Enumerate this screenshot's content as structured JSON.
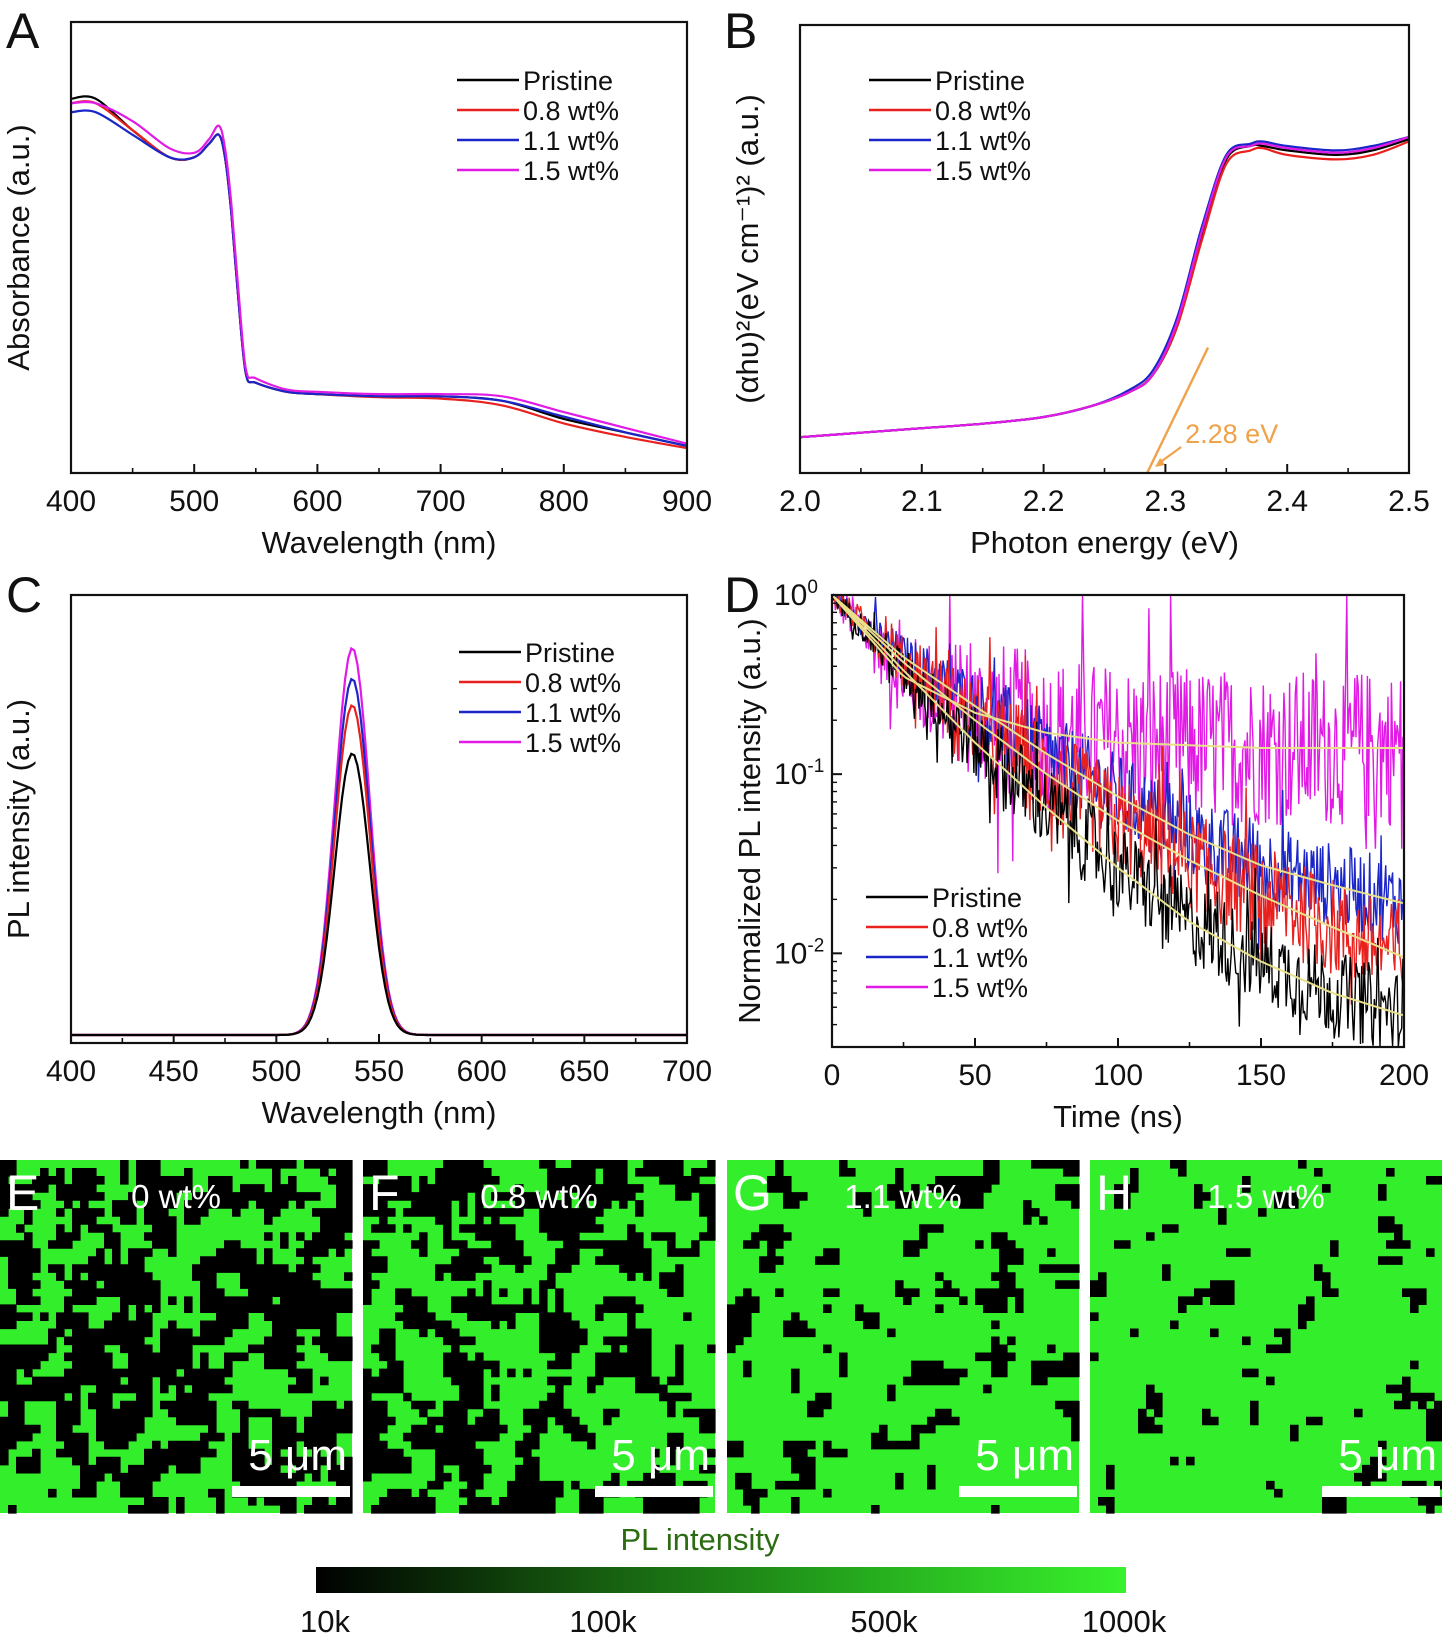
{
  "series_names": [
    "Pristine",
    "0.8 wt%",
    "1.1 wt%",
    "1.5 wt%"
  ],
  "colors": {
    "Pristine": "#000000",
    "0.8 wt%": "#e8211f",
    "1.1 wt%": "#1b26c8",
    "1.5 wt%": "#e21ae6",
    "fit": "#e8e08a",
    "annotation": "#f0a24a",
    "map_bright": "#33ee2a",
    "map_dark": "#000000"
  },
  "panels": {
    "A": {
      "letter": "A"
    },
    "B": {
      "letter": "B",
      "annotation": "2.28 eV"
    },
    "C": {
      "letter": "C"
    },
    "D": {
      "letter": "D"
    }
  },
  "micrographs": [
    {
      "letter": "E",
      "label": "0 wt%",
      "scale_text": "5 μm",
      "bright_fraction": 0.45
    },
    {
      "letter": "F",
      "label": "0.8 wt%",
      "scale_text": "5 μm",
      "bright_fraction": 0.55
    },
    {
      "letter": "G",
      "label": "1.1 wt%",
      "scale_text": "5 μm",
      "bright_fraction": 0.82
    },
    {
      "letter": "H",
      "label": "1.5 wt%",
      "scale_text": "5 μm",
      "bright_fraction": 0.9
    }
  ],
  "colorbar": {
    "title": "PL intensity",
    "ticks": [
      "10k",
      "100k",
      "500k",
      "1000k"
    ]
  },
  "chart_data": [
    {
      "id": "A",
      "type": "line",
      "xlabel": "Wavelength (nm)",
      "ylabel": "Absorbance (a.u.)",
      "xlim": [
        400,
        900
      ],
      "ylim": [
        0,
        1
      ],
      "xticks": [
        "400",
        "500",
        "600",
        "700",
        "800",
        "900"
      ],
      "legend": "top-right",
      "series": [
        {
          "name": "Pristine",
          "x": [
            400,
            420,
            450,
            480,
            500,
            512,
            520,
            525,
            530,
            536,
            542,
            550,
            575,
            600,
            650,
            700,
            750,
            800,
            850,
            900
          ],
          "y": [
            0.83,
            0.83,
            0.76,
            0.7,
            0.7,
            0.73,
            0.75,
            0.7,
            0.58,
            0.38,
            0.22,
            0.2,
            0.18,
            0.175,
            0.17,
            0.17,
            0.16,
            0.12,
            0.09,
            0.06
          ]
        },
        {
          "name": "0.8 wt%",
          "x": [
            400,
            420,
            450,
            480,
            500,
            512,
            520,
            525,
            530,
            536,
            542,
            550,
            575,
            600,
            650,
            700,
            750,
            800,
            850,
            900
          ],
          "y": [
            0.82,
            0.82,
            0.76,
            0.7,
            0.7,
            0.73,
            0.75,
            0.7,
            0.58,
            0.38,
            0.22,
            0.2,
            0.18,
            0.175,
            0.168,
            0.165,
            0.15,
            0.11,
            0.08,
            0.055
          ]
        },
        {
          "name": "1.1 wt%",
          "x": [
            400,
            420,
            450,
            480,
            500,
            512,
            520,
            525,
            530,
            536,
            542,
            550,
            575,
            600,
            650,
            700,
            750,
            800,
            850,
            900
          ],
          "y": [
            0.8,
            0.8,
            0.75,
            0.7,
            0.7,
            0.73,
            0.75,
            0.7,
            0.58,
            0.38,
            0.22,
            0.2,
            0.18,
            0.175,
            0.17,
            0.17,
            0.16,
            0.125,
            0.09,
            0.06
          ]
        },
        {
          "name": "1.5 wt%",
          "x": [
            400,
            420,
            450,
            480,
            500,
            512,
            520,
            525,
            530,
            536,
            542,
            550,
            575,
            600,
            650,
            700,
            750,
            800,
            850,
            900
          ],
          "y": [
            0.82,
            0.82,
            0.78,
            0.72,
            0.71,
            0.74,
            0.77,
            0.72,
            0.6,
            0.4,
            0.23,
            0.21,
            0.185,
            0.18,
            0.175,
            0.175,
            0.17,
            0.135,
            0.1,
            0.065
          ]
        }
      ]
    },
    {
      "id": "B",
      "type": "line",
      "xlabel": "Photon energy (eV)",
      "ylabel": "(αhυ)²(eV cm⁻¹)² (a.u.)",
      "xlim": [
        2.0,
        2.5
      ],
      "ylim": [
        0,
        1
      ],
      "xticks": [
        "2.0",
        "2.1",
        "2.2",
        "2.3",
        "2.4",
        "2.5"
      ],
      "legend": "top-left",
      "series": [
        {
          "name": "Pristine",
          "x": [
            2.0,
            2.05,
            2.1,
            2.15,
            2.2,
            2.24,
            2.27,
            2.29,
            2.31,
            2.33,
            2.35,
            2.37,
            2.38,
            2.4,
            2.44,
            2.47,
            2.5
          ],
          "y": [
            0.08,
            0.09,
            0.1,
            0.11,
            0.125,
            0.15,
            0.18,
            0.22,
            0.33,
            0.53,
            0.7,
            0.73,
            0.73,
            0.72,
            0.71,
            0.72,
            0.745
          ]
        },
        {
          "name": "0.8 wt%",
          "x": [
            2.0,
            2.05,
            2.1,
            2.15,
            2.2,
            2.24,
            2.27,
            2.29,
            2.31,
            2.33,
            2.35,
            2.37,
            2.38,
            2.4,
            2.44,
            2.47,
            2.5
          ],
          "y": [
            0.08,
            0.09,
            0.1,
            0.11,
            0.125,
            0.15,
            0.18,
            0.22,
            0.33,
            0.52,
            0.69,
            0.72,
            0.725,
            0.71,
            0.7,
            0.71,
            0.74
          ]
        },
        {
          "name": "1.1 wt%",
          "x": [
            2.0,
            2.05,
            2.1,
            2.15,
            2.2,
            2.24,
            2.27,
            2.29,
            2.31,
            2.33,
            2.35,
            2.37,
            2.38,
            2.4,
            2.44,
            2.47,
            2.5
          ],
          "y": [
            0.08,
            0.09,
            0.1,
            0.11,
            0.125,
            0.15,
            0.185,
            0.23,
            0.35,
            0.55,
            0.71,
            0.735,
            0.74,
            0.73,
            0.72,
            0.73,
            0.75
          ]
        },
        {
          "name": "1.5 wt%",
          "x": [
            2.0,
            2.05,
            2.1,
            2.15,
            2.2,
            2.24,
            2.27,
            2.29,
            2.31,
            2.33,
            2.35,
            2.37,
            2.38,
            2.4,
            2.44,
            2.47,
            2.5
          ],
          "y": [
            0.08,
            0.09,
            0.1,
            0.11,
            0.125,
            0.15,
            0.18,
            0.22,
            0.34,
            0.54,
            0.705,
            0.73,
            0.735,
            0.725,
            0.715,
            0.725,
            0.75
          ]
        }
      ],
      "tangent": {
        "x": [
          2.285,
          2.335
        ],
        "y": [
          0.0,
          0.28
        ]
      }
    },
    {
      "id": "C",
      "type": "line",
      "xlabel": "Wavelength (nm)",
      "ylabel": "PL intensity (a.u.)",
      "xlim": [
        400,
        700
      ],
      "ylim": [
        0,
        1
      ],
      "xticks": [
        "400",
        "450",
        "500",
        "550",
        "600",
        "650",
        "700"
      ],
      "legend": "top-right",
      "peak_center_nm": 537,
      "peak_fwhm_nm": 20,
      "series": [
        {
          "name": "Pristine",
          "peak": 0.64
        },
        {
          "name": "0.8 wt%",
          "peak": 0.75
        },
        {
          "name": "1.1 wt%",
          "peak": 0.81
        },
        {
          "name": "1.5 wt%",
          "peak": 0.88
        }
      ]
    },
    {
      "id": "D",
      "type": "line",
      "scale_y": "log",
      "xlabel": "Time (ns)",
      "ylabel": "Normalized PL intensity (a.u.)",
      "xlim": [
        0,
        200
      ],
      "ylim": [
        0.003,
        1
      ],
      "xticks": [
        "0",
        "50",
        "100",
        "150",
        "200"
      ],
      "yticks": [
        {
          "value": 1,
          "base": "10",
          "exp": "0"
        },
        {
          "value": 0.1,
          "base": "10",
          "exp": "-1"
        },
        {
          "value": 0.01,
          "base": "10",
          "exp": "-2"
        }
      ],
      "legend": "bottom-left",
      "series": [
        {
          "name": "Pristine",
          "t": [
            0,
            25,
            50,
            75,
            100,
            125,
            150,
            175,
            200
          ],
          "y": [
            1,
            0.38,
            0.15,
            0.065,
            0.03,
            0.015,
            0.009,
            0.006,
            0.0045
          ],
          "noise": 0.12
        },
        {
          "name": "0.8 wt%",
          "t": [
            0,
            25,
            50,
            75,
            100,
            125,
            150,
            175,
            200
          ],
          "y": [
            1,
            0.42,
            0.2,
            0.1,
            0.055,
            0.033,
            0.021,
            0.014,
            0.0095
          ],
          "noise": 0.14
        },
        {
          "name": "1.1 wt%",
          "t": [
            0,
            25,
            50,
            75,
            100,
            125,
            150,
            175,
            200
          ],
          "y": [
            1,
            0.45,
            0.24,
            0.13,
            0.075,
            0.046,
            0.031,
            0.024,
            0.019
          ],
          "noise": 0.12
        },
        {
          "name": "1.5 wt%",
          "t": [
            0,
            25,
            50,
            75,
            100,
            125,
            150,
            175,
            200
          ],
          "y": [
            1,
            0.35,
            0.22,
            0.17,
            0.15,
            0.145,
            0.14,
            0.14,
            0.14
          ],
          "noise": 0.22
        }
      ]
    }
  ]
}
